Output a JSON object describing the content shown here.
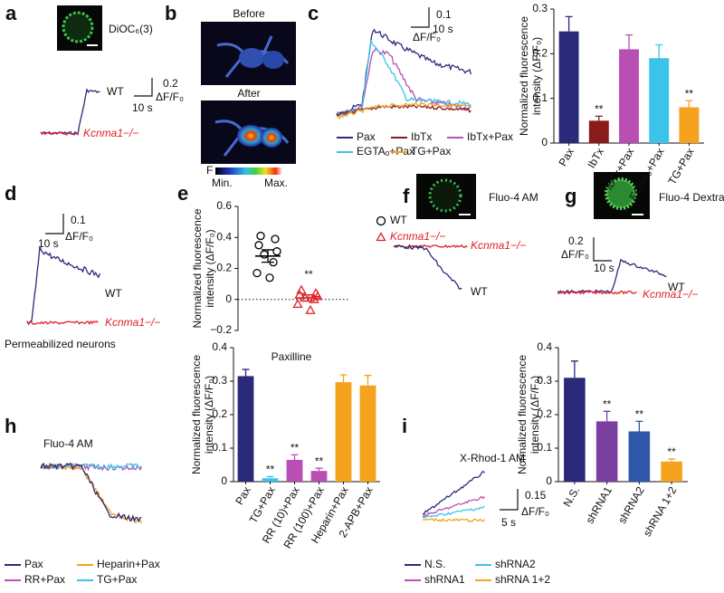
{
  "panels": {
    "a": {
      "label": "a",
      "dye": "DiOC₆(3)",
      "scale_y": "0.2",
      "scale_unit": "ΔF/F₀",
      "scale_x": "10 s",
      "wt": "WT",
      "ko": "Kcnma1−/−"
    },
    "b": {
      "label": "b",
      "before": "Before",
      "after": "After",
      "f": "F",
      "min": "Min.",
      "max": "Max."
    },
    "c": {
      "label": "c",
      "scale_y": "0.1",
      "scale_unit": "ΔF/F₀",
      "scale_x": "10 s",
      "legend": [
        {
          "name": "Pax",
          "color": "#2b2a7a"
        },
        {
          "name": "IbTx",
          "color": "#8b1a1a"
        },
        {
          "name": "IbTx+Pax",
          "color": "#b94fb5"
        },
        {
          "name": "EGTAₒ+Pax",
          "color": "#3cc3ea"
        },
        {
          "name": "TG+Pax",
          "color": "#f5a21e"
        }
      ]
    },
    "d": {
      "label": "d",
      "scale_y": "0.1",
      "scale_unit": "ΔF/F₀",
      "scale_x": "10 s",
      "wt": "WT",
      "ko": "Kcnma1−/−",
      "note": "Permeabilized neurons"
    },
    "e": {
      "label": "e"
    },
    "f": {
      "label": "f",
      "dye": "Fluo-4 AM",
      "ko": "Kcnma1−/−",
      "wt": "WT"
    },
    "g": {
      "label": "g",
      "dye": "Fluo-4 Dextran",
      "scale_y": "0.2",
      "scale_unit": "ΔF/F₀",
      "scale_x": "10 s",
      "wt": "WT",
      "ko": "Kcnma1−/−"
    },
    "h": {
      "label": "h",
      "dye": "Fluo-4 AM",
      "legend": [
        {
          "name": "Pax",
          "color": "#2b2a7a"
        },
        {
          "name": "Heparin+Pax",
          "color": "#f5a21e"
        },
        {
          "name": "RR+Pax",
          "color": "#b94fb5"
        },
        {
          "name": "TG+Pax",
          "color": "#3cc3ea"
        }
      ]
    },
    "i": {
      "label": "i",
      "dye": "X-Rhod-1 AM",
      "scale_y": "0.15",
      "scale_unit": "ΔF/F₀",
      "scale_x": "5 s",
      "legend": [
        {
          "name": "N.S.",
          "color": "#2b2a7a"
        },
        {
          "name": "shRNA2",
          "color": "#3cc3ea"
        },
        {
          "name": "shRNA1",
          "color": "#b94fb5"
        },
        {
          "name": "shRNA 1+2",
          "color": "#f5a21e"
        }
      ]
    }
  },
  "chart_data": [
    {
      "type": "bar",
      "ylabel": [
        "Normalized fluorescence",
        "intensity (ΔF/F₀)"
      ],
      "categories": [
        "Pax",
        "IbTx",
        "IbTx+Pax",
        "EGTAₒ+Pax",
        "TG+Pax"
      ],
      "values": [
        0.25,
        0.05,
        0.21,
        0.19,
        0.08
      ],
      "errors": [
        0.033,
        0.01,
        0.032,
        0.03,
        0.015
      ],
      "colors": [
        "#2b2a7a",
        "#8b1a1a",
        "#b94fb5",
        "#3cc3ea",
        "#f5a21e"
      ],
      "sig_labels": [
        null,
        "**",
        null,
        null,
        "**"
      ],
      "ylim": [
        0,
        0.3
      ],
      "yticks": [
        0,
        0.1,
        0.2,
        0.3
      ]
    },
    {
      "type": "strip",
      "ylabel": [
        "Normalized fluorescence",
        "intensity (ΔF/F₀)"
      ],
      "xlabel": "Paxilline",
      "ylim": [
        -0.2,
        0.6
      ],
      "yticks": [
        {
          "value": -0.2,
          "label": "−0.2"
        },
        0,
        0.2,
        0.4,
        0.6
      ],
      "series": [
        {
          "name": "WT",
          "color": "#000000",
          "marker": "circle",
          "values": [
            0.41,
            0.39,
            0.35,
            0.31,
            0.29,
            0.24,
            0.17,
            0.14
          ],
          "mean": 0.28,
          "sem": 0.04
        },
        {
          "name": "Kcnma1−/−",
          "color": "#e0202a",
          "marker": "triangle",
          "values": [
            0.06,
            0.04,
            0.03,
            0.02,
            0.01,
            0.0,
            -0.03,
            -0.07
          ],
          "mean": 0.01,
          "sem": 0.02,
          "annotation": "**"
        }
      ]
    },
    {
      "type": "bar",
      "ylabel": [
        "Normalized fluorescence",
        "intensity (ΔF/F₀)"
      ],
      "categories": [
        "Pax",
        "TG+Pax",
        "RR (10)+Pax",
        "RR (100)+Pax",
        "Heparin+Pax",
        "2-APB+Pax"
      ],
      "values": [
        0.315,
        0.01,
        0.065,
        0.032,
        0.297,
        0.287
      ],
      "errors": [
        0.02,
        0.005,
        0.015,
        0.008,
        0.022,
        0.03
      ],
      "colors": [
        "#2b2a7a",
        "#3cc3ea",
        "#b94fb5",
        "#b94fb5",
        "#f5a21e",
        "#f5a21e"
      ],
      "sig_labels": [
        null,
        "**",
        "**",
        "**",
        null,
        null
      ],
      "ylim": [
        0,
        0.4
      ],
      "yticks": [
        0,
        0.1,
        0.2,
        0.3,
        0.4
      ]
    },
    {
      "type": "bar",
      "ylabel": [
        "Normalized fluorescence",
        "intensity (ΔF/F₀)"
      ],
      "categories": [
        "N.S.",
        "shRNA1",
        "shRNA2",
        "shRNA 1+2"
      ],
      "values": [
        0.31,
        0.18,
        0.15,
        0.06
      ],
      "errors": [
        0.05,
        0.03,
        0.03,
        0.008
      ],
      "colors": [
        "#2b2a7a",
        "#7b3fa0",
        "#2f57a8",
        "#f5a21e"
      ],
      "sig_labels": [
        null,
        "**",
        "**",
        "**"
      ],
      "ylim": [
        0,
        0.4
      ],
      "yticks": [
        0,
        0.1,
        0.2,
        0.3,
        0.4
      ]
    }
  ]
}
